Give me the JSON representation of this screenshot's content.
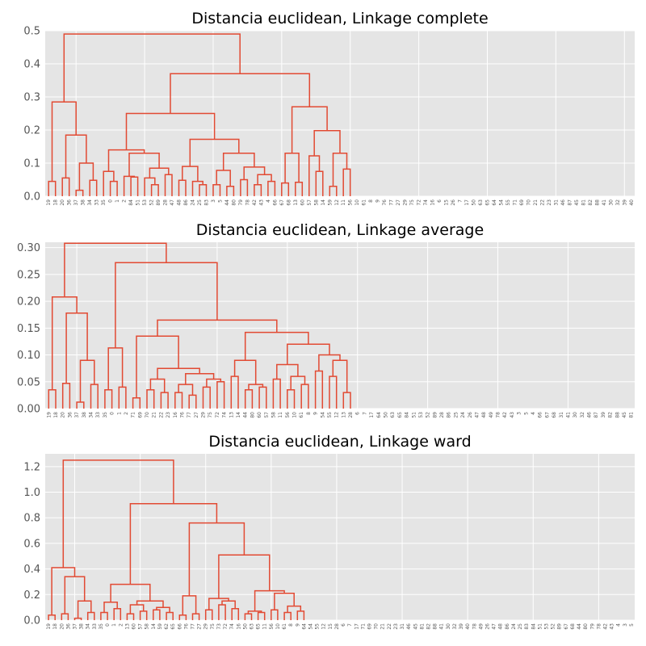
{
  "figure": {
    "background": "#ffffff",
    "axes_facecolor": "#e5e5e5",
    "grid_color": "#ffffff",
    "line_color": "#e24a33"
  },
  "chart_data": [
    {
      "type": "dendrogram",
      "title": "Distancia euclidean, Linkage complete",
      "ylim": [
        0,
        0.5
      ],
      "yticks": [
        "0.0",
        "0.1",
        "0.2",
        "0.3",
        "0.4",
        "0.5"
      ],
      "grid": true,
      "leaves": [
        "19",
        "18",
        "20",
        "36",
        "37",
        "38",
        "34",
        "33",
        "35",
        "0",
        "1",
        "2",
        "84",
        "51",
        "53",
        "52",
        "89",
        "28",
        "47",
        "48",
        "86",
        "24",
        "25",
        "83",
        "3",
        "5",
        "44",
        "80",
        "79",
        "78",
        "42",
        "43",
        "4",
        "66",
        "67",
        "68",
        "13",
        "60",
        "57",
        "58",
        "14",
        "59",
        "12",
        "11",
        "56",
        "10",
        "61",
        "8",
        "9",
        "76",
        "77",
        "27",
        "29",
        "75",
        "72",
        "74",
        "16",
        "6",
        "15",
        "26",
        "7",
        "17",
        "50",
        "63",
        "65",
        "64",
        "54",
        "55",
        "71",
        "69",
        "70",
        "21",
        "22",
        "23",
        "31",
        "46",
        "87",
        "45",
        "81",
        "82",
        "88",
        "41",
        "30",
        "32",
        "39",
        "40"
      ],
      "root": [
        0.49,
        [
          0.285,
          [
            0.045,
            "L",
            "L"
          ],
          [
            0.185,
            [
              0.055,
              "L",
              "L"
            ],
            [
              0.1,
              [
                0.018,
                "L",
                "L"
              ],
              [
                0.048,
                "L",
                "L"
              ]
            ]
          ]
        ],
        [
          0.37,
          [
            0.25,
            [
              0.14,
              [
                0.075,
                "L",
                [
                  0.045,
                  "L",
                  "L"
                ]
              ],
              [
                0.13,
                [
                  0.06,
                  "L",
                  [
                    0.058,
                    "L",
                    "L"
                  ]
                ],
                [
                  0.085,
                  [
                    0.055,
                    "L",
                    [
                      0.035,
                      "L",
                      "L"
                    ]
                  ],
                  [
                    0.065,
                    "L",
                    "L"
                  ]
                ]
              ]
            ],
            [
              0.172,
              [
                0.09,
                [
                  0.048,
                  "L",
                  "L"
                ],
                [
                  0.045,
                  "L",
                  [
                    0.035,
                    "L",
                    "L"
                  ]
                ]
              ],
              [
                0.13,
                [
                  0.078,
                  [
                    0.035,
                    "L",
                    "L"
                  ],
                  [
                    0.03,
                    "L",
                    "L"
                  ]
                ],
                [
                  0.088,
                  [
                    0.05,
                    "L",
                    "L"
                  ],
                  [
                    0.065,
                    [
                      0.035,
                      "L",
                      "L"
                    ],
                    [
                      0.045,
                      "L",
                      "L"
                    ]
                  ]
                ]
              ]
            ]
          ],
          [
            0.27,
            [
              0.13,
              [
                0.04,
                "L",
                "L"
              ],
              [
                0.042,
                "L",
                "L"
              ]
            ],
            [
              0.198,
              [
                0.122,
                "L",
                [
                  0.075,
                  "L",
                  "L"
                ]
              ],
              [
                0.13,
                [
                  0.03,
                  "L",
                  "L"
                ],
                [
                  0.082,
                  "L",
                  "L"
                ]
              ]
            ]
          ]
        ]
      ]
    },
    {
      "type": "dendrogram",
      "title": "Distancia euclidean, Linkage average",
      "ylim": [
        0,
        0.31
      ],
      "yticks": [
        "0.00",
        "0.05",
        "0.10",
        "0.15",
        "0.20",
        "0.25",
        "0.30"
      ],
      "grid": true,
      "leaves": [
        "19",
        "18",
        "20",
        "36",
        "37",
        "38",
        "34",
        "33",
        "35",
        "0",
        "1",
        "2",
        "71",
        "69",
        "70",
        "21",
        "22",
        "23",
        "16",
        "76",
        "77",
        "27",
        "29",
        "75",
        "72",
        "74",
        "13",
        "14",
        "44",
        "80",
        "60",
        "57",
        "58",
        "11",
        "56",
        "10",
        "61",
        "8",
        "9",
        "54",
        "55",
        "12",
        "13",
        "28",
        "6",
        "7",
        "17",
        "64",
        "50",
        "63",
        "65",
        "84",
        "51",
        "53",
        "52",
        "89",
        "28",
        "86",
        "25",
        "24",
        "26",
        "47",
        "48",
        "49",
        "78",
        "42",
        "43",
        "3",
        "5",
        "4",
        "66",
        "67",
        "68",
        "31",
        "41",
        "30",
        "32",
        "46",
        "87",
        "39",
        "82",
        "88",
        "45",
        "81"
      ],
      "root": [
        0.308,
        [
          0.208,
          [
            0.035,
            "L",
            "L"
          ],
          [
            0.178,
            [
              0.047,
              "L",
              "L"
            ],
            [
              0.09,
              [
                0.012,
                "L",
                "L"
              ],
              [
                0.045,
                "L",
                "L"
              ]
            ]
          ]
        ],
        [
          0.272,
          [
            0.113,
            [
              0.035,
              "L",
              "L"
            ],
            [
              0.04,
              "L",
              "L"
            ]
          ],
          [
            0.165,
            [
              0.135,
              [
                0.02,
                "L",
                "L"
              ],
              [
                0.075,
                [
                  0.055,
                  [
                    0.035,
                    "L",
                    "L"
                  ],
                  [
                    0.03,
                    "L",
                    "L"
                  ]
                ],
                [
                  0.065,
                  [
                    0.045,
                    [
                      0.03,
                      "L",
                      "L"
                    ],
                    [
                      0.025,
                      "L",
                      "L"
                    ]
                  ],
                  [
                    0.055,
                    [
                      0.04,
                      "L",
                      "L"
                    ],
                    [
                      0.05,
                      "L",
                      "L"
                    ]
                  ]
                ]
              ]
            ],
            [
              0.142,
              [
                0.09,
                [
                  0.06,
                  "L",
                  "L"
                ],
                [
                  0.045,
                  [
                    0.035,
                    "L",
                    "L"
                  ],
                  [
                    0.04,
                    "L",
                    "L"
                  ]
                ]
              ],
              [
                0.12,
                [
                  0.082,
                  [
                    0.055,
                    "L",
                    "L"
                  ],
                  [
                    0.06,
                    [
                      0.035,
                      "L",
                      "L"
                    ],
                    [
                      0.045,
                      "L",
                      "L"
                    ]
                  ]
                ],
                [
                  0.1,
                  [
                    0.07,
                    "L",
                    "L"
                  ],
                  [
                    0.09,
                    [
                      0.06,
                      "L",
                      "L"
                    ],
                    [
                      0.03,
                      "L",
                      "L"
                    ]
                  ]
                ]
              ]
            ]
          ]
        ]
      ]
    },
    {
      "type": "dendrogram",
      "title": "Distancia euclidean, Linkage ward",
      "ylim": [
        0,
        1.3
      ],
      "yticks": [
        "0.0",
        "0.2",
        "0.4",
        "0.6",
        "0.8",
        "1.0",
        "1.2"
      ],
      "grid": true,
      "leaves": [
        "19",
        "18",
        "20",
        "36",
        "37",
        "38",
        "34",
        "33",
        "35",
        "0",
        "1",
        "2",
        "13",
        "60",
        "57",
        "58",
        "14",
        "59",
        "62",
        "65",
        "66",
        "76",
        "77",
        "27",
        "29",
        "75",
        "73",
        "72",
        "74",
        "16",
        "50",
        "63",
        "65",
        "11",
        "56",
        "10",
        "61",
        "8",
        "9",
        "64",
        "54",
        "55",
        "12",
        "15",
        "28",
        "6",
        "7",
        "17",
        "71",
        "69",
        "70",
        "21",
        "22",
        "23",
        "31",
        "46",
        "45",
        "81",
        "82",
        "88",
        "41",
        "30",
        "32",
        "39",
        "40",
        "78",
        "49",
        "26",
        "47",
        "48",
        "86",
        "24",
        "25",
        "83",
        "84",
        "51",
        "53",
        "52",
        "89",
        "67",
        "68",
        "44",
        "80",
        "79",
        "78",
        "42",
        "43",
        "4",
        "3",
        "5"
      ],
      "root": [
        1.25,
        [
          0.41,
          [
            0.04,
            "L",
            "L"
          ],
          [
            0.34,
            [
              0.05,
              "L",
              "L"
            ],
            [
              0.15,
              [
                0.015,
                "L",
                "L"
              ],
              [
                0.06,
                "L",
                "L"
              ]
            ]
          ]
        ],
        [
          0.91,
          [
            0.28,
            [
              0.14,
              [
                0.06,
                "L",
                "L"
              ],
              [
                0.09,
                "L",
                "L"
              ]
            ],
            [
              0.15,
              [
                0.12,
                [
                  0.05,
                  "L",
                  "L"
                ],
                [
                  0.07,
                  "L",
                  "L"
                ]
              ],
              [
                0.1,
                [
                  0.08,
                  "L",
                  "L"
                ],
                [
                  0.06,
                  "L",
                  "L"
                ]
              ]
            ]
          ],
          [
            0.76,
            [
              0.19,
              [
                0.04,
                "L",
                "L"
              ],
              [
                0.05,
                "L",
                "L"
              ]
            ],
            [
              0.51,
              [
                0.17,
                [
                  0.08,
                  "L",
                  "L"
                ],
                [
                  0.15,
                  [
                    0.12,
                    "L",
                    "L"
                  ],
                  [
                    0.09,
                    "L",
                    "L"
                  ]
                ]
              ],
              [
                0.23,
                [
                  0.07,
                  [
                    0.05,
                    "L",
                    "L"
                  ],
                  [
                    0.06,
                    "L",
                    "L"
                  ]
                ],
                [
                  0.21,
                  [
                    0.08,
                    "L",
                    "L"
                  ],
                  [
                    0.11,
                    [
                      0.06,
                      "L",
                      "L"
                    ],
                    [
                      0.07,
                      "L",
                      "L"
                    ]
                  ]
                ]
              ]
            ]
          ]
        ]
      ]
    }
  ]
}
